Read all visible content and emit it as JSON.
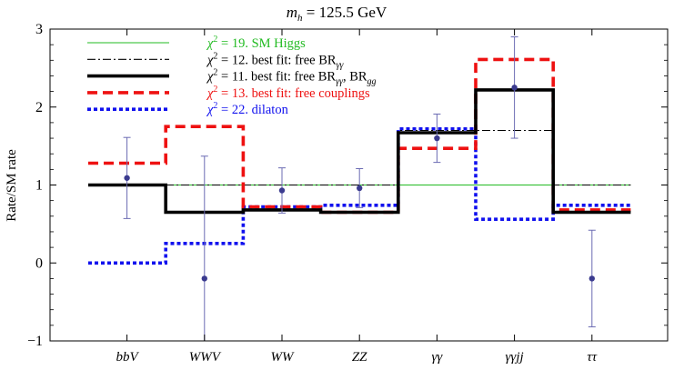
{
  "chart_data": {
    "type": "line",
    "title_prefix": "m",
    "title_sub": "h",
    "title_rest": " = 125.5 GeV",
    "ylabel": "Rate/SM rate",
    "xlabel": "",
    "ylim": [
      -1,
      3
    ],
    "yticks": [
      "−1",
      "0",
      "1",
      "2",
      "3"
    ],
    "yticks_values": [
      -1,
      0,
      1,
      2,
      3
    ],
    "categories": [
      {
        "base": "bbV",
        "sub": ""
      },
      {
        "base": "WWV",
        "sub": ""
      },
      {
        "base": "WW",
        "sub": ""
      },
      {
        "base": "ZZ",
        "sub": ""
      },
      {
        "base": "γγ",
        "sub": ""
      },
      {
        "base": "γγjj",
        "sub": ""
      },
      {
        "base": "ττ",
        "sub": ""
      }
    ],
    "grid": false,
    "legend_position": "top-left",
    "series": [
      {
        "key": "sm",
        "color": "#22bb22",
        "style": "solid",
        "legend": "χ² = 19. SM Higgs",
        "values": [
          1,
          1,
          1,
          1,
          1,
          1,
          1
        ]
      },
      {
        "key": "brgg",
        "color": "#000000",
        "style": "dashdot",
        "legend": "χ² = 12. best fit: free BRγγ",
        "values": [
          1,
          1,
          1,
          1,
          1.7,
          1.7,
          1
        ]
      },
      {
        "key": "brgg_bgg",
        "color": "#000000",
        "style": "thick",
        "legend": "χ² = 11. best fit: free BRγγ, BRgg",
        "values": [
          1.0,
          0.65,
          0.68,
          0.65,
          1.67,
          2.22,
          0.65
        ]
      },
      {
        "key": "couplings",
        "color": "#ee1111",
        "style": "dashed",
        "legend": "χ² = 13. best fit: free couplings",
        "values": [
          1.28,
          1.75,
          0.72,
          0.65,
          1.47,
          2.61,
          0.68
        ]
      },
      {
        "key": "dilaton",
        "color": "#1111ee",
        "style": "dotted",
        "legend": "χ² = 22. dilaton",
        "values": [
          0.0,
          0.25,
          0.72,
          0.74,
          1.72,
          0.56,
          0.74
        ]
      }
    ],
    "data_points": [
      {
        "category": "bbV",
        "value": 1.09,
        "err_lo": 0.52,
        "err_hi": 0.52
      },
      {
        "category": "WWV",
        "value": -0.2,
        "err_lo": 1.57,
        "err_hi": 1.57
      },
      {
        "category": "WW",
        "value": 0.93,
        "err_lo": 0.29,
        "err_hi": 0.29
      },
      {
        "category": "ZZ",
        "value": 0.96,
        "err_lo": 0.25,
        "err_hi": 0.25
      },
      {
        "category": "γγ",
        "value": 1.6,
        "err_lo": 0.31,
        "err_hi": 0.31
      },
      {
        "category": "γγjj",
        "value": 2.25,
        "err_lo": 0.65,
        "err_hi": 0.65
      },
      {
        "category": "ττ",
        "value": -0.2,
        "err_lo": 0.62,
        "err_hi": 0.62
      }
    ],
    "legend_entries": [
      {
        "chi": "χ",
        "exp": "2",
        "pre": " = 19. SM Higgs",
        "sub1": "",
        "mid": "",
        "sub2": "",
        "color": "#22bb22"
      },
      {
        "chi": "χ",
        "exp": "2",
        "pre": " = 12. best fit: free BR",
        "sub1": "γγ",
        "mid": "",
        "sub2": "",
        "color": "#000000"
      },
      {
        "chi": "χ",
        "exp": "2",
        "pre": " = 11. best fit: free BR",
        "sub1": "γγ",
        "mid": ", BR",
        "sub2": "gg",
        "color": "#000000"
      },
      {
        "chi": "χ",
        "exp": "2",
        "pre": " = 13. best fit: free couplings",
        "sub1": "",
        "mid": "",
        "sub2": "",
        "color": "#ee1111"
      },
      {
        "chi": "χ",
        "exp": "2",
        "pre": " = 22. dilaton",
        "sub1": "",
        "mid": "",
        "sub2": "",
        "color": "#1111ee"
      }
    ],
    "colors": {
      "data_point": "#3b3b8f",
      "error_bar": "#6b6bb3",
      "frame": "#000000"
    }
  }
}
